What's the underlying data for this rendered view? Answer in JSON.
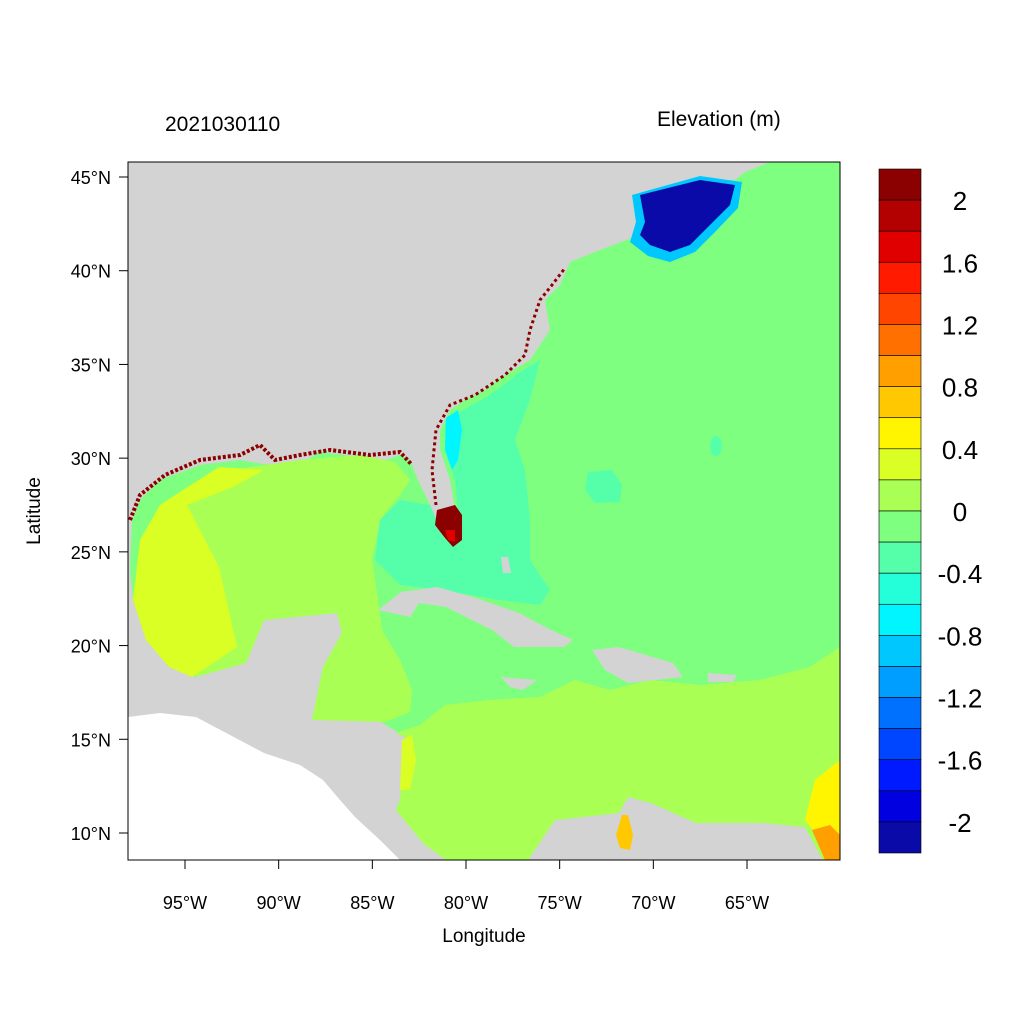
{
  "title_left": "2021030110",
  "title_right": "Elevation (m)",
  "xlabel": "Longitude",
  "ylabel": "Latitude",
  "x_ticks": [
    "95°W",
    "90°W",
    "85°W",
    "80°W",
    "75°W",
    "70°W",
    "65°W"
  ],
  "x_tick_values": [
    -95,
    -90,
    -85,
    -80,
    -75,
    -70,
    -65
  ],
  "y_ticks": [
    "45°N",
    "40°N",
    "35°N",
    "30°N",
    "25°N",
    "20°N",
    "15°N",
    "10°N"
  ],
  "y_tick_values": [
    45,
    40,
    35,
    30,
    25,
    20,
    15,
    10
  ],
  "lon_range": [
    -98,
    -60
  ],
  "lat_range": [
    8.6,
    45.8
  ],
  "colorbar": {
    "labels": [
      "2",
      "1.6",
      "1.2",
      "0.8",
      "0.4",
      "0",
      "-0.4",
      "-0.8",
      "-1.2",
      "-1.6",
      "-2"
    ],
    "label_values": [
      2,
      1.6,
      1.2,
      0.8,
      0.4,
      0,
      -0.4,
      -0.8,
      -1.2,
      -1.6,
      -2
    ],
    "levels": [
      2.0,
      1.8,
      1.6,
      1.4,
      1.2,
      1.0,
      0.8,
      0.6,
      0.4,
      0.2,
      0.0,
      -0.2,
      -0.4,
      -0.6,
      -0.8,
      -1.0,
      -1.2,
      -1.4,
      -1.6,
      -1.8,
      -2.0
    ],
    "colors": [
      "#8b0000",
      "#b30000",
      "#e00000",
      "#ff1a00",
      "#ff4500",
      "#ff7000",
      "#ff9f00",
      "#ffc800",
      "#fff500",
      "#d9ff24",
      "#aaff55",
      "#7fff7f",
      "#55ffaa",
      "#24ffd9",
      "#00f5ff",
      "#00c8ff",
      "#009fff",
      "#0070ff",
      "#0045ff",
      "#001aff",
      "#0000e0",
      "#0a0aa8"
    ]
  },
  "map_colors": {
    "land": "#d3d3d3",
    "nodata": "#ffffff"
  }
}
